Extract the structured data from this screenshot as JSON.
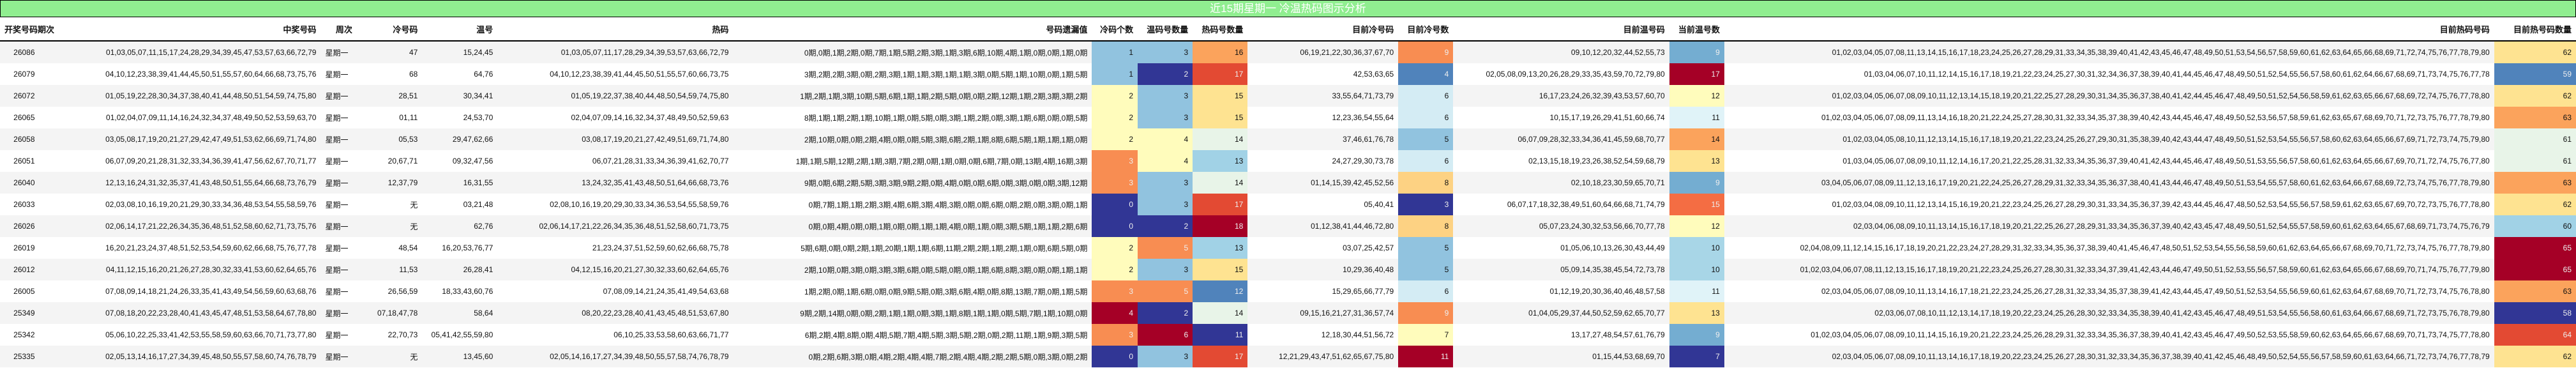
{
  "title": "近15期星期一 冷温热码图示分析",
  "headers": {
    "period": "开奖号码期次",
    "numbers": "中奖号码",
    "weekday": "周次",
    "cold": "冷号码",
    "warm": "温号",
    "hot": "热码",
    "miss": "号码遗漏值",
    "cold_count": "冷码个数",
    "warm_count": "温码号数量",
    "hot_count": "热码号数量",
    "cur_cold": "目前冷号码",
    "cur_cold_count": "目前冷号数",
    "cur_warm": "目前温号码",
    "cur_warm_count": "当前温号数",
    "cur_hot": "目前热码号码",
    "cur_hot_count": "目前热号码数量"
  },
  "palette": {
    "0": "#313695",
    "1": "#4575b4",
    "2": "#74add1",
    "3": "#abd9e9",
    "4": "#e0f3f8",
    "5": "#ffffbf",
    "6": "#fee090",
    "7": "#fdae61",
    "8": "#f46d43",
    "9": "#d73027",
    "10": "#a50026",
    "title_bg": "#90ee90"
  },
  "rows": [
    {
      "period": "26086",
      "numbers": "01,03,05,07,11,15,17,24,28,29,34,39,45,47,53,57,63,66,72,79",
      "weekday": "星期一",
      "cold": "47",
      "warm": "15,24,45",
      "hot": "01,03,05,07,11,17,28,29,34,39,53,57,63,66,72,79",
      "miss": "0期,0期,1期,2期,0期,7期,1期,5期,2期,3期,1期,3期,6期,10期,4期,1期,0期,0期,1期,0期",
      "cold_count": "1",
      "warm_count": "3",
      "hot_count": "16",
      "cur_cold": "06,19,21,22,30,36,37,67,70",
      "cur_cold_count": "9",
      "cur_warm": "09,10,12,20,32,44,52,55,73",
      "cur_warm_count": "9",
      "cur_hot": "01,02,03,04,05,07,08,11,13,14,15,16,17,18,23,24,25,26,27,28,29,31,33,34,35,38,39,40,41,42,43,45,46,47,48,49,50,51,53,54,56,57,58,59,60,61,62,63,64,65,66,68,69,71,72,74,75,76,77,78,79,80",
      "cur_hot_count": "62",
      "c": {
        "cold_count": "#91c3df",
        "warm_count": "#91c3df",
        "hot_count": "#fba35c",
        "cur_cold_count": "#f88d52",
        "cur_warm_count": "#74add1",
        "cur_hot_count": "#fee391"
      }
    },
    {
      "period": "26079",
      "numbers": "04,10,12,23,38,39,41,44,45,50,51,55,57,60,64,66,68,73,75,76",
      "weekday": "星期一",
      "cold": "68",
      "warm": "64,76",
      "hot": "04,10,12,23,38,39,41,44,45,50,51,55,57,60,66,73,75",
      "miss": "3期,2期,2期,3期,0期,2期,3期,1期,1期,3期,1期,1期,3期,0期,5期,1期,10期,0期,1期,5期",
      "cold_count": "1",
      "warm_count": "2",
      "hot_count": "17",
      "cur_cold": "42,53,63,65",
      "cur_cold_count": "4",
      "cur_warm": "02,05,08,09,13,20,26,28,29,33,35,43,59,70,72,79,80",
      "cur_warm_count": "17",
      "cur_hot": "01,03,04,06,07,10,11,12,14,15,16,17,18,19,21,22,23,24,25,27,30,31,32,34,36,37,38,39,40,41,44,45,46,47,48,49,50,51,52,54,55,56,57,58,60,61,62,64,66,67,68,69,71,73,74,75,76,77,78",
      "cur_hot_count": "59",
      "c": {
        "cold_count": "#91c3df",
        "warm_count": "#313695",
        "hot_count": "#e34a33",
        "cur_cold_count": "#5083bb",
        "cur_warm_count": "#a50026",
        "cur_hot_count": "#5083bb"
      }
    },
    {
      "period": "26072",
      "numbers": "01,05,19,22,28,30,34,37,38,40,41,44,48,50,51,54,59,74,75,80",
      "weekday": "星期一",
      "cold": "28,51",
      "warm": "30,34,41",
      "hot": "01,05,19,22,37,38,40,44,48,50,54,59,74,75,80",
      "miss": "1期,2期,1期,3期,10期,5期,6期,1期,1期,2期,5期,0期,0期,2期,12期,1期,2期,3期,3期,2期",
      "cold_count": "2",
      "warm_count": "3",
      "hot_count": "15",
      "cur_cold": "33,55,64,71,73,79",
      "cur_cold_count": "6",
      "cur_warm": "16,17,23,24,26,32,39,43,53,57,60,70",
      "cur_warm_count": "12",
      "cur_hot": "01,02,03,04,05,06,07,08,09,10,11,12,13,14,15,18,19,20,21,22,25,27,28,29,30,31,34,35,36,37,38,40,41,42,44,45,46,47,48,49,50,51,52,54,56,58,59,61,62,63,65,66,67,68,69,72,74,75,76,77,78,80",
      "cur_hot_count": "62",
      "c": {
        "cold_count": "#fffcbc",
        "warm_count": "#91c3df",
        "hot_count": "#fee391",
        "cur_cold_count": "#d4ecf4",
        "cur_warm_count": "#fffcbc",
        "cur_hot_count": "#fee391"
      }
    },
    {
      "period": "26065",
      "numbers": "01,02,04,07,09,11,14,16,24,32,34,37,48,49,50,52,53,59,63,70",
      "weekday": "星期一",
      "cold": "01,11",
      "warm": "24,53,70",
      "hot": "02,04,07,09,14,16,32,34,37,48,49,50,52,59,63",
      "miss": "8期,1期,1期,2期,1期,10期,1期,0期,5期,0期,3期,1期,2期,0期,3期,1期,6期,0期,0期,5期",
      "cold_count": "2",
      "warm_count": "3",
      "hot_count": "15",
      "cur_cold": "12,23,36,54,55,64",
      "cur_cold_count": "6",
      "cur_warm": "10,15,17,19,26,29,41,51,60,66,74",
      "cur_warm_count": "11",
      "cur_hot": "01,02,03,04,05,06,07,08,09,11,13,14,16,18,20,21,22,24,25,27,28,30,31,32,33,34,35,37,38,39,40,42,43,44,45,46,47,48,49,50,52,53,56,57,58,59,61,62,63,65,67,68,69,70,71,72,73,75,76,77,78,79,80",
      "cur_hot_count": "63",
      "c": {
        "cold_count": "#fffcbc",
        "warm_count": "#91c3df",
        "hot_count": "#fee391",
        "cur_cold_count": "#d4ecf4",
        "cur_warm_count": "#e0f3f8",
        "cur_hot_count": "#fba35c"
      }
    },
    {
      "period": "26058",
      "numbers": "03,05,08,17,19,20,21,27,29,42,47,49,51,53,62,66,69,71,74,80",
      "weekday": "星期一",
      "cold": "05,53",
      "warm": "29,47,62,66",
      "hot": "03,08,17,19,20,21,27,42,49,51,69,71,74,80",
      "miss": "2期,10期,0期,0期,2期,4期,0期,0期,5期,3期,6期,2期,1期,8期,6期,5期,1期,1期,1期,0期",
      "cold_count": "2",
      "warm_count": "4",
      "hot_count": "14",
      "cur_cold": "37,46,61,76,78",
      "cur_cold_count": "5",
      "cur_warm": "06,07,09,28,32,33,34,36,41,45,59,68,70,77",
      "cur_warm_count": "14",
      "cur_hot": "01,02,03,04,05,08,10,11,12,13,14,15,16,17,18,19,20,21,22,23,24,25,26,27,29,30,31,35,38,39,40,42,43,44,47,48,49,50,51,52,53,54,55,56,57,58,60,62,63,64,65,66,67,69,71,72,73,74,75,79,80",
      "cur_hot_count": "61",
      "c": {
        "cold_count": "#fffcbc",
        "warm_count": "#fffcbc",
        "hot_count": "#e8f4e8",
        "cur_cold_count": "#91c3df",
        "cur_warm_count": "#fba35c",
        "cur_hot_count": "#e8f4e8"
      }
    },
    {
      "period": "26051",
      "numbers": "06,07,09,20,21,28,31,32,33,34,36,39,41,47,56,62,67,70,71,77",
      "weekday": "星期一",
      "cold": "20,67,71",
      "warm": "09,32,47,56",
      "hot": "06,07,21,28,31,33,34,36,39,41,62,70,77",
      "miss": "1期,1期,5期,12期,2期,1期,3期,7期,2期,0期,1期,0期,0期,6期,7期,0期,13期,4期,16期,3期",
      "cold_count": "3",
      "warm_count": "4",
      "hot_count": "13",
      "cur_cold": "24,27,29,30,73,78",
      "cur_cold_count": "6",
      "cur_warm": "02,13,15,18,19,23,26,38,52,54,59,68,79",
      "cur_warm_count": "13",
      "cur_hot": "01,03,04,05,06,07,08,09,10,11,12,14,16,17,20,21,22,25,28,31,32,33,34,35,36,37,39,40,41,42,43,44,45,46,47,48,49,50,51,53,55,56,57,58,60,61,62,63,64,65,66,67,69,70,71,72,74,75,76,77,80",
      "cur_hot_count": "61",
      "c": {
        "cold_count": "#f88d52",
        "warm_count": "#fffcbc",
        "hot_count": "#a1d2e6",
        "cur_cold_count": "#d4ecf4",
        "cur_warm_count": "#fee391",
        "cur_hot_count": "#e8f4e8"
      }
    },
    {
      "period": "26040",
      "numbers": "12,13,16,24,31,32,35,37,41,43,48,50,51,55,64,66,68,73,76,79",
      "weekday": "星期一",
      "cold": "12,37,79",
      "warm": "16,31,55",
      "hot": "13,24,32,35,41,43,48,50,51,64,66,68,73,76",
      "miss": "9期,0期,6期,2期,5期,3期,3期,9期,2期,0期,4期,0期,0期,6期,0期,3期,0期,0期,3期,12期",
      "cold_count": "3",
      "warm_count": "3",
      "hot_count": "14",
      "cur_cold": "01,14,15,39,42,45,52,56",
      "cur_cold_count": "8",
      "cur_warm": "02,10,18,23,30,59,65,70,71",
      "cur_warm_count": "9",
      "cur_hot": "03,04,05,06,07,08,09,11,12,13,16,17,19,20,21,22,24,25,26,27,28,29,31,32,33,34,35,36,37,38,40,41,43,44,46,47,48,49,50,51,53,54,55,57,58,60,61,62,63,64,66,67,68,69,72,73,74,75,76,77,78,79,80",
      "cur_hot_count": "63",
      "c": {
        "cold_count": "#f88d52",
        "warm_count": "#91c3df",
        "hot_count": "#e8f4e8",
        "cur_cold_count": "#fdd283",
        "cur_warm_count": "#74add1",
        "cur_hot_count": "#fba35c"
      }
    },
    {
      "period": "26033",
      "numbers": "02,03,08,10,16,19,20,21,29,30,33,34,36,48,53,54,55,58,59,76",
      "weekday": "星期一",
      "cold": "无",
      "warm": "03,21,48",
      "hot": "02,08,10,16,19,20,29,30,33,34,36,53,54,55,58,59,76",
      "miss": "0期,7期,1期,1期,2期,3期,4期,6期,3期,4期,3期,0期,0期,6期,0期,2期,0期,3期,0期,1期",
      "cold_count": "0",
      "warm_count": "3",
      "hot_count": "17",
      "cur_cold": "05,40,41",
      "cur_cold_count": "3",
      "cur_warm": "06,07,17,18,32,38,49,51,60,64,66,68,71,74,79",
      "cur_warm_count": "15",
      "cur_hot": "01,02,03,04,08,09,10,11,12,13,14,15,16,19,20,21,22,23,24,25,26,27,28,29,30,31,33,34,35,36,37,39,42,43,44,45,46,47,48,50,52,53,54,55,56,57,58,59,61,62,63,65,67,69,70,72,73,75,76,77,78,80",
      "cur_hot_count": "62",
      "c": {
        "cold_count": "#313695",
        "warm_count": "#91c3df",
        "hot_count": "#e34a33",
        "cur_cold_count": "#313695",
        "cur_warm_count": "#f46d43",
        "cur_hot_count": "#fee391"
      }
    },
    {
      "period": "26026",
      "numbers": "02,06,14,17,21,22,26,34,35,36,48,51,52,58,60,62,71,73,75,76",
      "weekday": "星期一",
      "cold": "无",
      "warm": "62,76",
      "hot": "02,06,14,17,21,22,26,34,35,36,48,51,52,58,60,71,73,75",
      "miss": "0期,0期,4期,0期,0期,1期,0期,0期,1期,1期,4期,0期,1期,0期,3期,5期,1期,1期,2期,6期",
      "cold_count": "0",
      "warm_count": "2",
      "hot_count": "18",
      "cur_cold": "01,12,38,41,44,46,72,80",
      "cur_cold_count": "8",
      "cur_warm": "05,07,23,24,30,32,53,56,66,70,77,78",
      "cur_warm_count": "12",
      "cur_hot": "02,03,04,06,08,09,10,11,13,14,15,16,17,18,19,20,21,22,25,26,27,28,29,31,33,34,35,36,37,39,40,42,43,45,47,48,49,50,51,52,54,55,57,58,59,60,61,62,63,64,65,67,68,69,71,73,74,75,76,79",
      "cur_hot_count": "60",
      "c": {
        "cold_count": "#313695",
        "warm_count": "#313695",
        "hot_count": "#a50026",
        "cur_cold_count": "#fdd283",
        "cur_warm_count": "#fffcbc",
        "cur_hot_count": "#a1d2e6"
      }
    },
    {
      "period": "26019",
      "numbers": "16,20,21,23,24,37,48,51,52,53,54,59,60,62,66,68,75,76,77,78",
      "weekday": "星期一",
      "cold": "48,54",
      "warm": "16,20,53,76,77",
      "hot": "21,23,24,37,51,52,59,60,62,66,68,75,78",
      "miss": "5期,6期,0期,0期,2期,1期,20期,1期,1期,6期,11期,2期,2期,1期,2期,1期,0期,6期,5期,0期",
      "cold_count": "2",
      "warm_count": "5",
      "hot_count": "13",
      "cur_cold": "03,07,25,42,57",
      "cur_cold_count": "5",
      "cur_warm": "01,05,06,10,13,26,30,43,44,49",
      "cur_warm_count": "10",
      "cur_hot": "02,04,08,09,11,12,14,15,16,17,18,19,20,21,22,23,24,27,28,29,31,32,33,34,35,36,37,38,39,40,41,45,46,47,48,50,51,52,53,54,55,56,58,59,60,61,62,63,64,65,66,67,68,69,70,71,72,73,74,75,76,77,78,79,80",
      "cur_hot_count": "65",
      "c": {
        "cold_count": "#fffcbc",
        "warm_count": "#f88d52",
        "hot_count": "#a1d2e6",
        "cur_cold_count": "#91c3df",
        "cur_warm_count": "#a8d6e7",
        "cur_hot_count": "#a50026"
      }
    },
    {
      "period": "26012",
      "numbers": "04,11,12,15,16,20,21,26,27,28,30,32,33,41,53,60,62,64,65,76",
      "weekday": "星期一",
      "cold": "11,53",
      "warm": "26,28,41",
      "hot": "04,12,15,16,20,21,27,30,32,33,60,62,64,65,76",
      "miss": "2期,10期,0期,3期,0期,3期,3期,6期,0期,5期,0期,0期,1期,6期,8期,3期,0期,0期,1期,1期",
      "cold_count": "2",
      "warm_count": "3",
      "hot_count": "15",
      "cur_cold": "10,29,36,40,48",
      "cur_cold_count": "5",
      "cur_warm": "05,09,14,35,38,45,54,72,73,78",
      "cur_warm_count": "10",
      "cur_hot": "01,02,03,04,06,07,08,11,12,13,15,16,17,18,19,20,21,22,23,24,25,26,27,28,30,31,32,33,34,37,39,41,42,43,44,46,47,49,50,51,52,53,55,56,57,58,59,60,61,62,63,64,65,66,67,68,69,70,71,74,75,76,77,79,80",
      "cur_hot_count": "65",
      "c": {
        "cold_count": "#fffcbc",
        "warm_count": "#91c3df",
        "hot_count": "#fee391",
        "cur_cold_count": "#91c3df",
        "cur_warm_count": "#a8d6e7",
        "cur_hot_count": "#a50026"
      }
    },
    {
      "period": "26005",
      "numbers": "07,08,09,14,18,21,24,26,33,35,41,43,49,54,56,59,60,63,68,76",
      "weekday": "星期一",
      "cold": "26,56,59",
      "warm": "18,33,43,60,76",
      "hot": "07,08,09,14,21,24,35,41,49,54,63,68",
      "miss": "1期,2期,0期,1期,6期,0期,0期,9期,5期,0期,3期,6期,4期,0期,8期,13期,7期,0期,1期,5期",
      "cold_count": "3",
      "warm_count": "5",
      "hot_count": "12",
      "cur_cold": "15,29,65,66,77,79",
      "cur_cold_count": "6",
      "cur_warm": "01,12,19,20,30,36,40,46,48,57,58",
      "cur_warm_count": "11",
      "cur_hot": "02,03,04,05,06,07,08,09,10,11,13,14,16,17,18,21,22,23,24,25,26,27,28,31,32,33,34,35,37,38,39,41,42,43,44,45,47,49,50,51,52,53,54,55,56,59,60,61,62,63,64,67,68,69,70,71,72,73,74,75,76,78,80",
      "cur_hot_count": "63",
      "c": {
        "cold_count": "#f88d52",
        "warm_count": "#f88d52",
        "hot_count": "#5083bb",
        "cur_cold_count": "#d4ecf4",
        "cur_warm_count": "#e0f3f8",
        "cur_hot_count": "#fba35c"
      }
    },
    {
      "period": "25349",
      "numbers": "07,08,18,20,22,23,28,40,41,43,45,47,48,51,53,58,64,67,78,80",
      "weekday": "星期一",
      "cold": "07,18,47,78",
      "warm": "58,64",
      "hot": "08,20,22,23,28,40,41,43,45,48,51,53,67,80",
      "miss": "9期,2期,14期,0期,0期,2期,1期,1期,0期,3期,1期,8期,1期,1期,0期,5期,7期,1期,10期,0期",
      "cold_count": "4",
      "warm_count": "2",
      "hot_count": "14",
      "cur_cold": "09,15,16,21,27,31,36,57,74",
      "cur_cold_count": "9",
      "cur_warm": "01,04,05,29,37,44,50,52,59,62,65,70,77",
      "cur_warm_count": "13",
      "cur_hot": "02,03,06,07,08,10,11,12,13,14,17,18,19,20,22,23,24,25,26,28,30,32,33,34,35,38,39,40,41,42,43,45,46,47,48,49,51,53,54,55,56,58,60,61,63,64,66,67,68,69,71,72,73,75,76,78,79,80",
      "cur_hot_count": "58",
      "c": {
        "cold_count": "#a50026",
        "warm_count": "#313695",
        "hot_count": "#e8f4e8",
        "cur_cold_count": "#f88d52",
        "cur_warm_count": "#fee391",
        "cur_hot_count": "#313695"
      }
    },
    {
      "period": "25342",
      "numbers": "05,06,10,22,25,33,41,42,53,55,58,59,60,63,66,70,71,73,77,80",
      "weekday": "星期一",
      "cold": "22,70,73",
      "warm": "05,41,42,55,59,80",
      "hot": "06,10,25,33,53,58,60,63,66,71,77",
      "miss": "6期,2期,4期,8期,0期,4期,5期,7期,4期,5期,3期,5期,2期,0期,2期,11期,1期,9期,3期,5期",
      "cold_count": "3",
      "warm_count": "6",
      "hot_count": "11",
      "cur_cold": "12,18,30,44,51,56,72",
      "cur_cold_count": "7",
      "cur_warm": "13,17,27,48,54,57,61,76,79",
      "cur_warm_count": "9",
      "cur_hot": "01,02,03,04,05,06,07,08,09,10,11,14,15,16,19,20,21,22,23,24,25,26,28,29,31,32,33,34,35,36,37,38,39,40,41,42,43,45,46,47,49,50,52,53,55,58,59,60,62,63,64,65,66,67,68,69,70,71,73,74,75,77,78,80",
      "cur_hot_count": "64",
      "c": {
        "cold_count": "#f88d52",
        "warm_count": "#a50026",
        "hot_count": "#313695",
        "cur_cold_count": "#fffcbc",
        "cur_warm_count": "#74add1",
        "cur_hot_count": "#e34a33"
      }
    },
    {
      "period": "25335",
      "numbers": "02,05,13,14,16,17,27,34,39,45,48,50,55,57,58,60,74,76,78,79",
      "weekday": "星期一",
      "cold": "无",
      "warm": "13,45,60",
      "hot": "02,05,14,16,17,27,34,39,48,50,55,57,58,74,76,78,79",
      "miss": "0期,2期,6期,3期,0期,4期,2期,4期,4期,7期,2期,4期,4期,2期,2期,5期,0期,3期,0期,2期",
      "cold_count": "0",
      "warm_count": "3",
      "hot_count": "17",
      "cur_cold": "12,21,29,43,47,51,62,65,67,75,80",
      "cur_cold_count": "11",
      "cur_warm": "01,15,44,53,68,69,70",
      "cur_warm_count": "7",
      "cur_hot": "02,03,04,05,06,07,08,09,10,11,13,14,16,17,18,19,20,22,23,24,25,26,27,28,30,31,32,33,34,35,36,37,38,39,40,41,42,45,46,48,49,50,52,54,55,56,57,58,59,60,61,63,64,66,71,72,73,74,76,77,78,79",
      "cur_hot_count": "62",
      "c": {
        "cold_count": "#313695",
        "warm_count": "#91c3df",
        "hot_count": "#e34a33",
        "cur_cold_count": "#a50026",
        "cur_warm_count": "#313695",
        "cur_hot_count": "#fee391"
      }
    }
  ]
}
